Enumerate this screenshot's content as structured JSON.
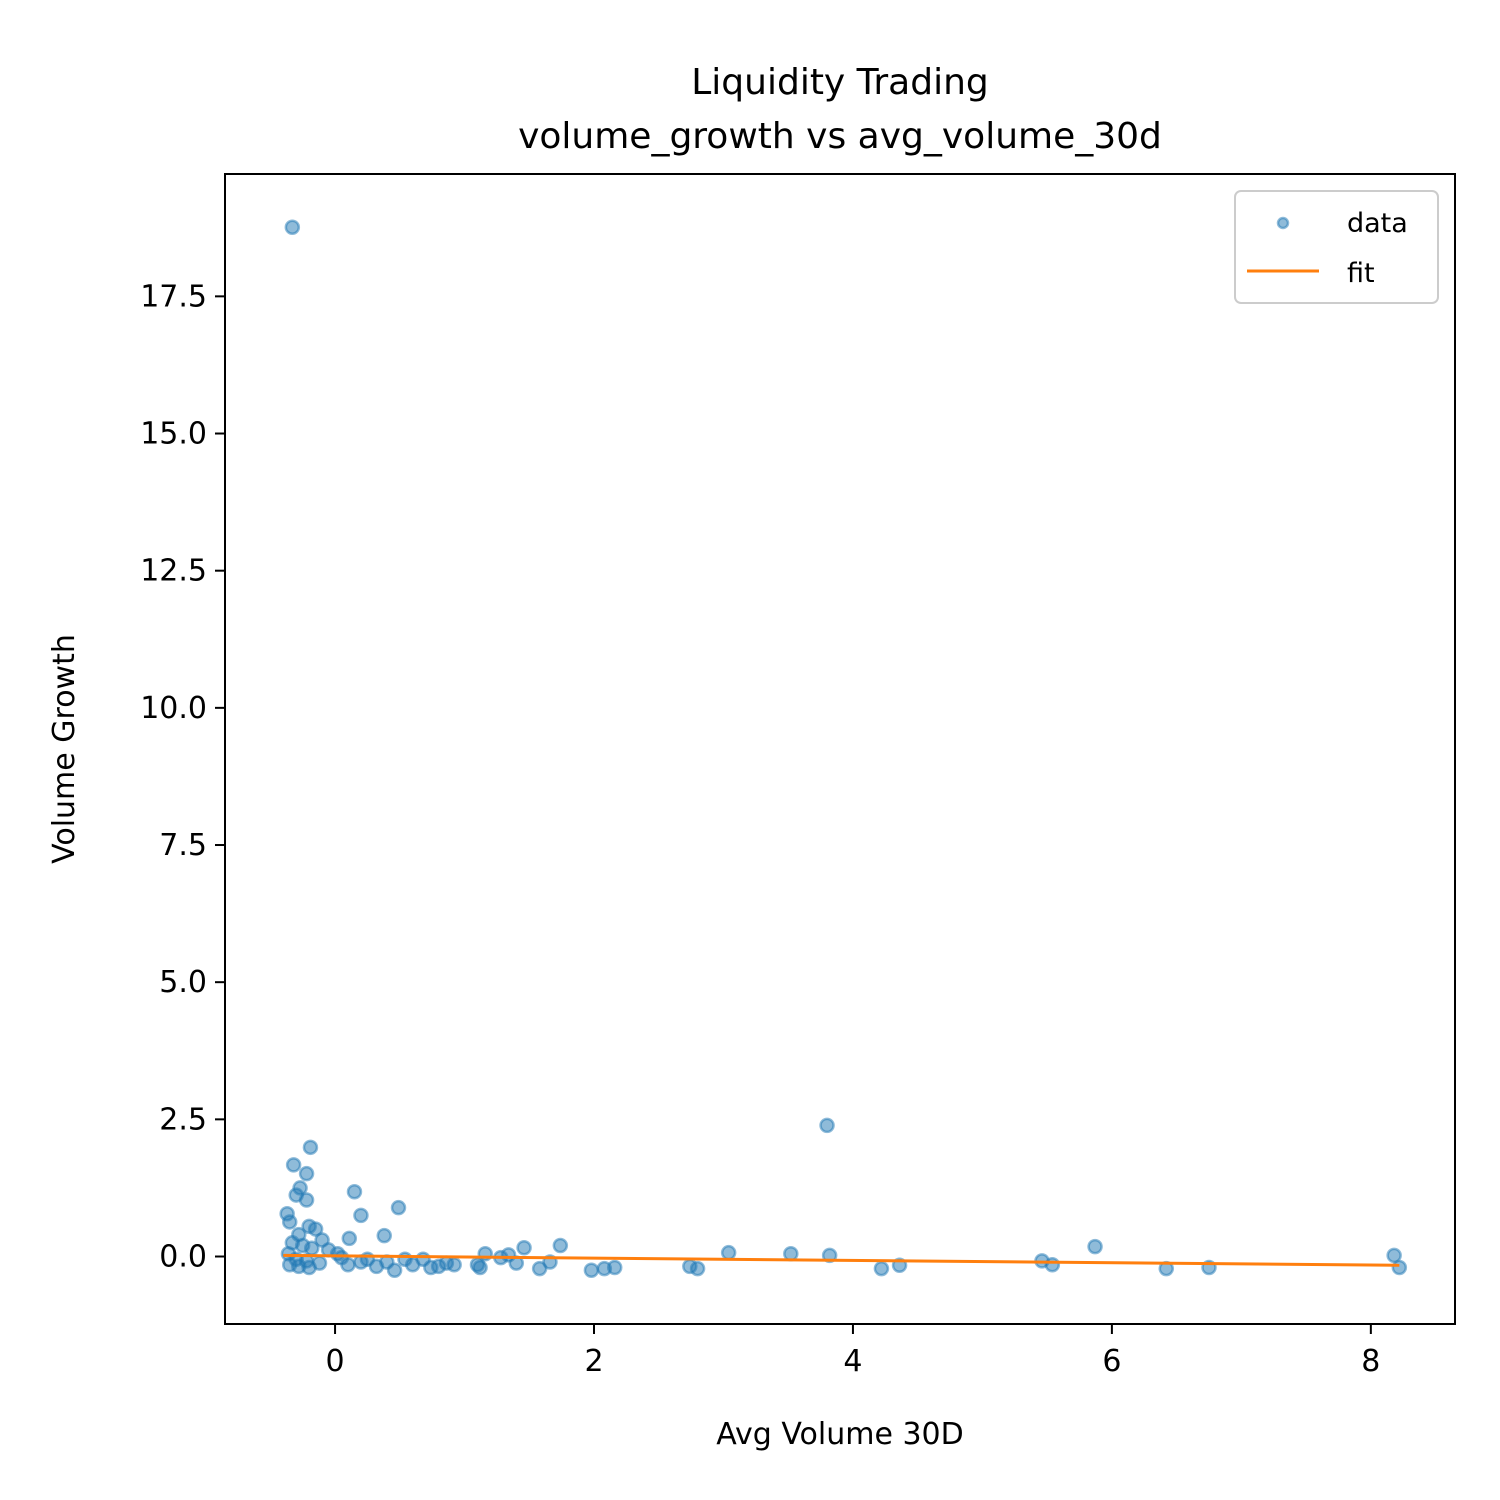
{
  "chart_data": {
    "type": "scatter",
    "title": "Liquidity Trading",
    "subtitle": "volume_growth vs avg_volume_30d",
    "xlabel": "Avg Volume 30D",
    "ylabel": "Volume Growth",
    "xlim": [
      -0.85,
      8.65
    ],
    "ylim": [
      -1.23,
      19.73
    ],
    "xticks": [
      0,
      2,
      4,
      6,
      8
    ],
    "yticks": [
      0.0,
      2.5,
      5.0,
      7.5,
      10.0,
      12.5,
      15.0,
      17.5
    ],
    "xtick_labels": [
      "0",
      "2",
      "4",
      "6",
      "8"
    ],
    "ytick_labels": [
      "0.0",
      "2.5",
      "5.0",
      "7.5",
      "10.0",
      "12.5",
      "15.0",
      "17.5"
    ],
    "grid": false,
    "legend_position": "top-right",
    "colors": {
      "data": "#1f77b4",
      "fit": "#ff7f0e"
    },
    "series": [
      {
        "name": "data",
        "kind": "scatter",
        "points": [
          [
            -0.33,
            18.76
          ],
          [
            3.8,
            2.39
          ],
          [
            -0.19,
            1.99
          ],
          [
            -0.32,
            1.67
          ],
          [
            -0.22,
            1.51
          ],
          [
            -0.27,
            1.25
          ],
          [
            -0.3,
            1.12
          ],
          [
            0.15,
            1.18
          ],
          [
            -0.22,
            1.03
          ],
          [
            0.49,
            0.89
          ],
          [
            0.2,
            0.75
          ],
          [
            -0.37,
            0.78
          ],
          [
            -0.35,
            0.63
          ],
          [
            -0.2,
            0.55
          ],
          [
            -0.15,
            0.5
          ],
          [
            0.38,
            0.38
          ],
          [
            0.11,
            0.33
          ],
          [
            -0.28,
            0.4
          ],
          [
            -0.1,
            0.3
          ],
          [
            -0.33,
            0.25
          ],
          [
            -0.25,
            0.2
          ],
          [
            -0.18,
            0.15
          ],
          [
            -0.05,
            0.12
          ],
          [
            0.02,
            0.05
          ],
          [
            0.05,
            -0.02
          ],
          [
            -0.36,
            0.05
          ],
          [
            -0.3,
            -0.05
          ],
          [
            -0.22,
            -0.08
          ],
          [
            -0.12,
            -0.12
          ],
          [
            -0.35,
            -0.15
          ],
          [
            -0.28,
            -0.18
          ],
          [
            -0.2,
            -0.2
          ],
          [
            0.1,
            -0.15
          ],
          [
            0.2,
            -0.1
          ],
          [
            0.25,
            -0.05
          ],
          [
            0.32,
            -0.18
          ],
          [
            0.4,
            -0.1
          ],
          [
            0.46,
            -0.25
          ],
          [
            0.54,
            -0.05
          ],
          [
            0.6,
            -0.15
          ],
          [
            0.68,
            -0.05
          ],
          [
            0.74,
            -0.2
          ],
          [
            0.8,
            -0.18
          ],
          [
            0.86,
            -0.12
          ],
          [
            0.92,
            -0.15
          ],
          [
            1.1,
            -0.15
          ],
          [
            1.12,
            -0.2
          ],
          [
            1.16,
            0.05
          ],
          [
            1.28,
            -0.02
          ],
          [
            1.34,
            0.03
          ],
          [
            1.4,
            -0.12
          ],
          [
            1.46,
            0.16
          ],
          [
            1.58,
            -0.22
          ],
          [
            1.66,
            -0.1
          ],
          [
            1.74,
            0.2
          ],
          [
            1.98,
            -0.25
          ],
          [
            2.08,
            -0.22
          ],
          [
            2.16,
            -0.2
          ],
          [
            2.74,
            -0.18
          ],
          [
            2.8,
            -0.22
          ],
          [
            3.04,
            0.07
          ],
          [
            3.52,
            0.05
          ],
          [
            3.82,
            0.02
          ],
          [
            4.22,
            -0.22
          ],
          [
            4.36,
            -0.16
          ],
          [
            5.46,
            -0.08
          ],
          [
            5.54,
            -0.15
          ],
          [
            5.87,
            0.18
          ],
          [
            6.42,
            -0.22
          ],
          [
            6.75,
            -0.2
          ],
          [
            8.18,
            0.02
          ],
          [
            8.22,
            -0.2
          ]
        ]
      },
      {
        "name": "fit",
        "kind": "line",
        "points": [
          [
            -0.4,
            0.02
          ],
          [
            8.22,
            -0.16
          ]
        ]
      }
    ]
  }
}
